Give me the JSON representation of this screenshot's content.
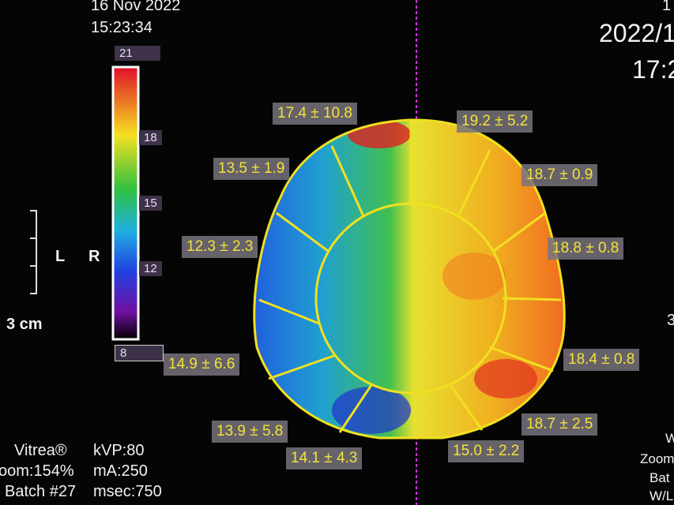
{
  "header": {
    "date": "16 Nov 2022",
    "time": "15:23:34"
  },
  "right_header": {
    "line1": "1",
    "line2": "2022/1",
    "line3": "17:2"
  },
  "colorbar": {
    "labels": [
      "21",
      "18",
      "15",
      "12",
      "8"
    ]
  },
  "scale": {
    "left": "L",
    "right": "R",
    "length": "3 cm"
  },
  "regions": [
    {
      "label": "17.4 ± 10.8"
    },
    {
      "label": "13.5 ± 1.9"
    },
    {
      "label": "12.3 ± 2.3"
    },
    {
      "label": "14.9 ± 6.6"
    },
    {
      "label": "13.9 ± 5.8"
    },
    {
      "label": "14.1 ± 4.3"
    },
    {
      "label": "19.2 ± 5.2"
    },
    {
      "label": "18.7 ± 0.9"
    },
    {
      "label": "18.8 ± 0.8"
    },
    {
      "label": "18.4 ± 0.8"
    },
    {
      "label": "18.7 ± 2.5"
    },
    {
      "label": "15.0 ± 2.2"
    }
  ],
  "footer_left": {
    "vendor": "Vitrea®",
    "zoom": "oom:154%",
    "batch": "Batch #27",
    "kvp": "kVP:80",
    "ma": "mA:250",
    "msec": "msec:750"
  },
  "footer_right": {
    "line1": "W",
    "line2": "Zoom",
    "line3": "Bat",
    "line4": "W/L"
  },
  "right_edge": "3"
}
